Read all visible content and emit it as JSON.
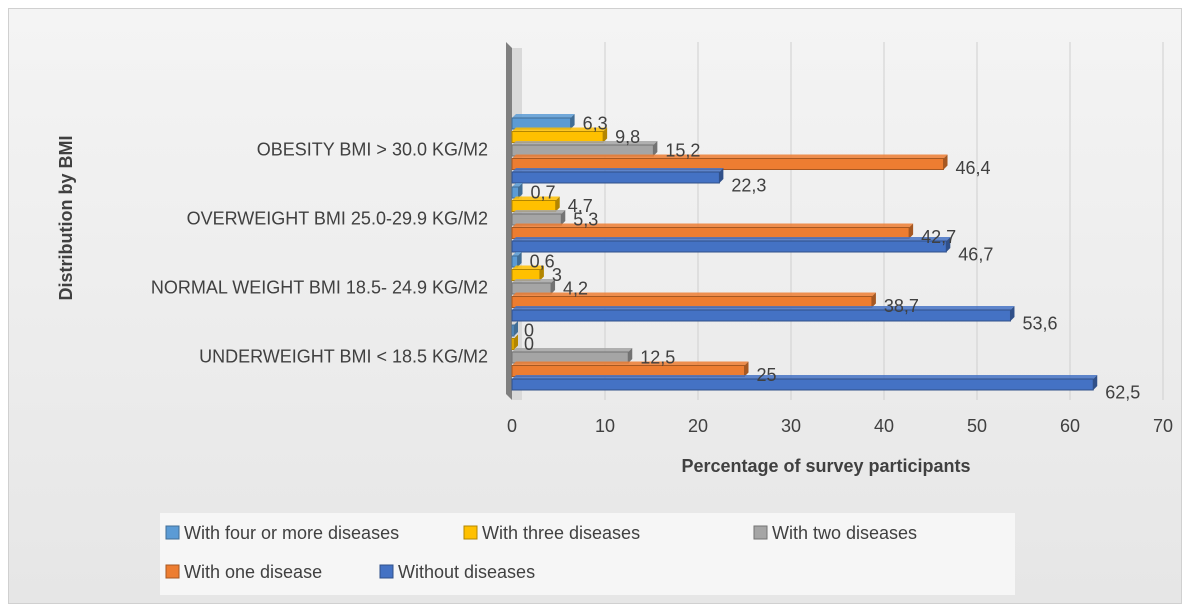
{
  "chart_data": {
    "type": "bar",
    "orientation": "horizontal",
    "categories": [
      "OBESITY BMI > 30.0 KG/M2",
      "OVERWEIGHT BMI 25.0-29.9 KG/M2",
      "NORMAL WEIGHT BMI 18.5- 24.9 KG/M2",
      "UNDERWEIGHT BMI < 18.5 KG/M2"
    ],
    "series": [
      {
        "name": "With four or more diseases",
        "color": "#5B9BD5",
        "values": [
          6.3,
          0.7,
          0.6,
          0
        ],
        "labels": [
          "6,3",
          "0,7",
          "0,6",
          "0"
        ]
      },
      {
        "name": "With three diseases",
        "color": "#FFC000",
        "values": [
          9.8,
          4.7,
          3,
          0
        ],
        "labels": [
          "9,8",
          "4,7",
          "3",
          "0"
        ]
      },
      {
        "name": "With two diseases",
        "color": "#A5A5A5",
        "values": [
          15.2,
          5.3,
          4.2,
          12.5
        ],
        "labels": [
          "15,2",
          "5,3",
          "4,2",
          "12,5"
        ]
      },
      {
        "name": "With one disease",
        "color": "#ED7D31",
        "values": [
          46.4,
          42.7,
          38.7,
          25
        ],
        "labels": [
          "46,4",
          "42,7",
          "38,7",
          "25"
        ]
      },
      {
        "name": "Without diseases",
        "color": "#4472C4",
        "values": [
          22.3,
          46.7,
          53.6,
          62.5
        ],
        "labels": [
          "22,3",
          "46,7",
          "53,6",
          "62,5"
        ]
      }
    ],
    "xlabel": "Percentage of survey participants",
    "ylabel": "Distribution by BMI",
    "xlim": [
      0,
      70
    ],
    "xticks": [
      0,
      10,
      20,
      30,
      40,
      50,
      60,
      70
    ],
    "grid": true,
    "legend_position": "bottom",
    "legend_order": [
      "With four or more diseases",
      "With three diseases",
      "With two diseases",
      "With one disease",
      "Without diseases"
    ]
  }
}
